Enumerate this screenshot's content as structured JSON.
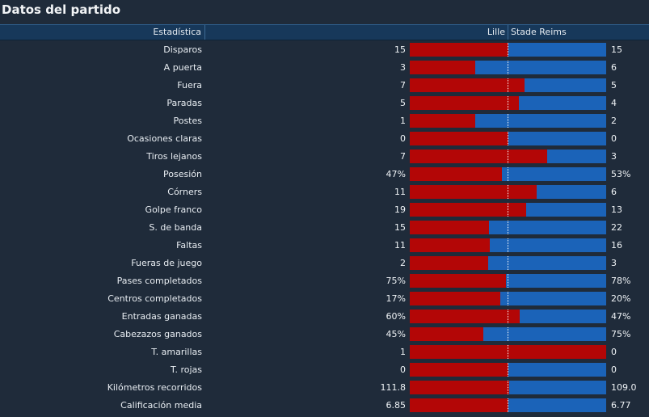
{
  "title": "Datos del partido",
  "header": {
    "stat_label": "Estadística",
    "home_team": "Lille",
    "away_team": "Stade Reims"
  },
  "colors": {
    "home": "#b30606",
    "away": "#1b63b8",
    "background": "#1f2b3a",
    "header": "#17385a"
  },
  "stats": [
    {
      "label": "Disparos",
      "home": "15",
      "away": "15",
      "home_share": 0.5
    },
    {
      "label": "A puerta",
      "home": "3",
      "away": "6",
      "home_share": 0.333
    },
    {
      "label": "Fuera",
      "home": "7",
      "away": "5",
      "home_share": 0.583
    },
    {
      "label": "Paradas",
      "home": "5",
      "away": "4",
      "home_share": 0.556
    },
    {
      "label": "Postes",
      "home": "1",
      "away": "2",
      "home_share": 0.333
    },
    {
      "label": "Ocasiones claras",
      "home": "0",
      "away": "0",
      "home_share": 0.5
    },
    {
      "label": "Tiros lejanos",
      "home": "7",
      "away": "3",
      "home_share": 0.7
    },
    {
      "label": "Posesión",
      "home": "47%",
      "away": "53%",
      "home_share": 0.47
    },
    {
      "label": "Córners",
      "home": "11",
      "away": "6",
      "home_share": 0.647
    },
    {
      "label": "Golpe franco",
      "home": "19",
      "away": "13",
      "home_share": 0.594
    },
    {
      "label": "S. de banda",
      "home": "15",
      "away": "22",
      "home_share": 0.405
    },
    {
      "label": "Faltas",
      "home": "11",
      "away": "16",
      "home_share": 0.407
    },
    {
      "label": "Fueras de juego",
      "home": "2",
      "away": "3",
      "home_share": 0.4
    },
    {
      "label": "Pases completados",
      "home": "75%",
      "away": "78%",
      "home_share": 0.49
    },
    {
      "label": "Centros completados",
      "home": "17%",
      "away": "20%",
      "home_share": 0.46
    },
    {
      "label": "Entradas ganadas",
      "home": "60%",
      "away": "47%",
      "home_share": 0.56
    },
    {
      "label": "Cabezazos ganados",
      "home": "45%",
      "away": "75%",
      "home_share": 0.375
    },
    {
      "label": "T. amarillas",
      "home": "1",
      "away": "0",
      "home_share": 1.0
    },
    {
      "label": "T. rojas",
      "home": "0",
      "away": "0",
      "home_share": 0.5
    },
    {
      "label": "Kilómetros recorridos",
      "home": "111.8",
      "away": "109.0",
      "home_share": 0.506
    },
    {
      "label": "Calificación media",
      "home": "6.85",
      "away": "6.77",
      "home_share": 0.503
    }
  ]
}
